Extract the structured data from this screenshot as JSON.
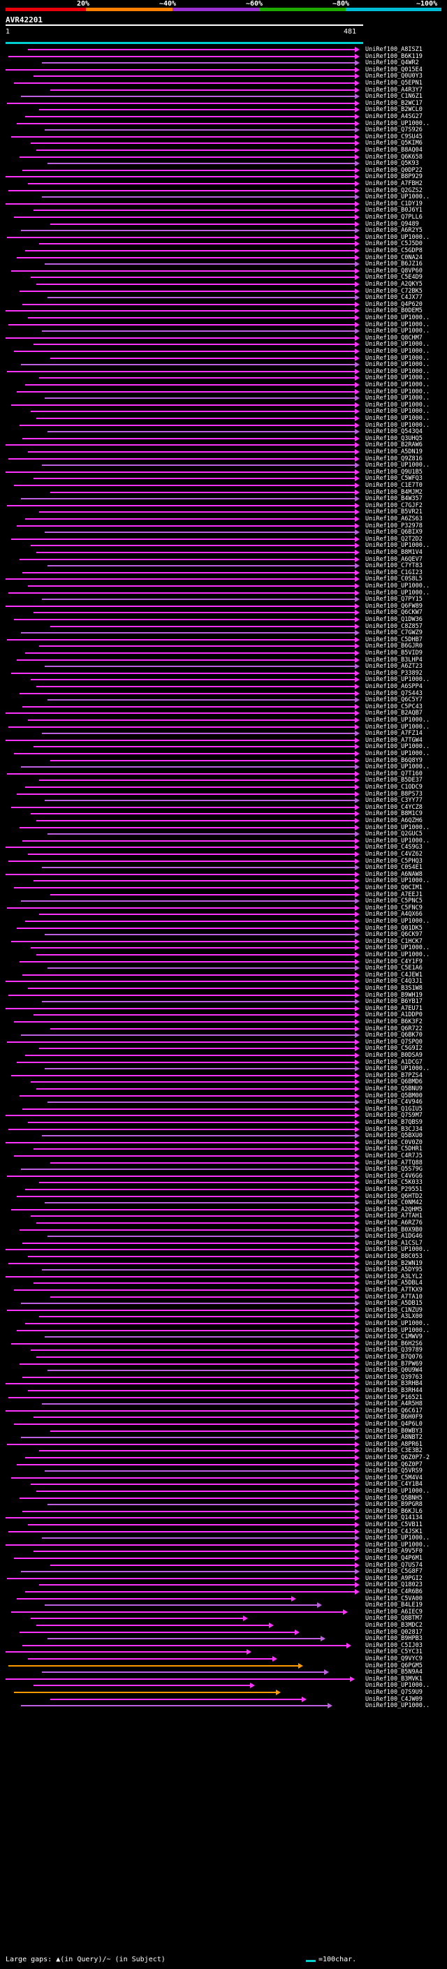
{
  "colors": {
    "background": "#000000",
    "scale_segments": [
      "#e8000b",
      "#ff8000",
      "#9b30d0",
      "#1eaa00",
      "#00bcd4"
    ],
    "query_line": "#00cfcf",
    "hit_magenta": "#ff33ff",
    "hit_purple": "#c060e0",
    "hit_orange": "#ff9900"
  },
  "scale": {
    "labels": [
      "20%",
      "~40%",
      "~60%",
      "~80%",
      "~100%"
    ]
  },
  "query": {
    "name": "AVR42201",
    "start": "1",
    "end": "481"
  },
  "hits": [
    "UniRef100_A8ISZ1",
    "UniRef100_B6K119",
    "UniRef100_Q4WR2",
    "UniRef100_Q015E4",
    "UniRef100_Q0U0Y3",
    "UniRef100_Q5EPN1",
    "UniRef100_A4R3Y7",
    "UniRef100_C1N6Z1",
    "UniRef100_B2WC17",
    "UniRef100_B2WCL0",
    "UniRef100_A4SG27",
    "UniRef100_UP1000..",
    "UniRef100_Q7S926",
    "UniRef100_C9SU45",
    "UniRef100_Q5KIM6",
    "UniRef100_B8AQ04",
    "UniRef100_Q6K658",
    "UniRef100_Q5K93",
    "UniRef100_Q0DP22",
    "UniRef100_B8P929",
    "UniRef100_A7FBH2",
    "UniRef100_Q2GZS2",
    "UniRef100_UP1000..",
    "UniRef100_C1DY19",
    "UniRef100_B0J6Y1",
    "UniRef100_Q7PLL6",
    "UniRef100_Q9489",
    "UniRef100_A6R2Y5",
    "UniRef100_UP1000..",
    "UniRef100_C5J5D0",
    "UniRef100_C5GDP8",
    "UniRef100_C0NA24",
    "UniRef100_B6JZ16",
    "UniRef100_Q8VP60",
    "UniRef100_C5E4D9",
    "UniRef100_A2QKY5",
    "UniRef100_C72BK5",
    "UniRef100_C4JX77",
    "UniRef100_Q4P620",
    "UniRef100_B0DEM5",
    "UniRef100_UP1000..",
    "UniRef100_UP1000..",
    "UniRef100_UP1000..",
    "UniRef100_Q8CHM7",
    "UniRef100_UP1000..",
    "UniRef100_UP1000..",
    "UniRef100_UP1000..",
    "UniRef100_UP1000..",
    "UniRef100_UP1000..",
    "UniRef100_UP1000..",
    "UniRef100_UP1000..",
    "UniRef100_UP1000..",
    "UniRef100_UP1000..",
    "UniRef100_UP1000..",
    "UniRef100_UP1000..",
    "UniRef100_UP1000..",
    "UniRef100_UP1000..",
    "UniRef100_Q543Q4",
    "UniRef100_Q3UHQ5",
    "UniRef100_B2RAW6",
    "UniRef100_A5DN19",
    "UniRef100_Q9Z816",
    "UniRef100_UP1000..",
    "UniRef100_Q9U1B5",
    "UniRef100_C5WFQ3",
    "UniRef100_C1E7T0",
    "UniRef100_B4MJM2",
    "UniRef100_B4W357",
    "UniRef100_C7GJF2",
    "UniRef100_B5VR21",
    "UniRef100_A6ZS63",
    "UniRef100_P32978",
    "UniRef100_Q6BIX9",
    "UniRef100_Q2T2D2",
    "UniRef100_UP1000..",
    "UniRef100_B8M1V4",
    "UniRef100_A6QEV7",
    "UniRef100_C7YT83",
    "UniRef100_C1GI23",
    "UniRef100_C0S8L5",
    "UniRef100_UP1000..",
    "UniRef100_UP1000..",
    "UniRef100_Q7PY15",
    "UniRef100_Q6FW89",
    "UniRef100_Q6CKW7",
    "UniRef100_Q1DW36",
    "UniRef100_C8Z857",
    "UniRef100_C7GWZ9",
    "UniRef100_C5DHB7",
    "UniRef100_B6GJR0",
    "UniRef100_B5VID9",
    "UniRef100_B3LHP4",
    "UniRef100_A6ZT23",
    "UniRef100_P33892",
    "UniRef100_UP1000..",
    "UniRef100_A6SPP4",
    "UniRef100_Q7S443",
    "UniRef100_Q6C5Y7",
    "UniRef100_C5PC43",
    "UniRef100_B2AQB7",
    "UniRef100_UP1000..",
    "UniRef100_UP1000..",
    "UniRef100_A7FZ14",
    "UniRef100_A7TGW4",
    "UniRef100_UP1000..",
    "UniRef100_UP1000..",
    "UniRef100_B6Q8Y9",
    "UniRef100_UP1000..",
    "UniRef100_Q7T160",
    "UniRef100_B5DE37",
    "UniRef100_C1ODC9",
    "UniRef100_B8PS73",
    "UniRef100_C3YY77",
    "UniRef100_C4YCZ8",
    "UniRef100_B8M1C9",
    "UniRef100_A6QZH6",
    "UniRef100_UP1000..",
    "UniRef100_Q2GUC5",
    "UniRef100_UP1000..",
    "UniRef100_C4S9G3",
    "UniRef100_C4VZ62",
    "UniRef100_C5PHQ3",
    "UniRef100_C0S4E1",
    "UniRef100_A6NAW8",
    "UniRef100_UP1000..",
    "UniRef100_Q0CIM1",
    "UniRef100_A7EEJ1",
    "UniRef100_C5PNC5",
    "UniRef100_C5FNC9",
    "UniRef100_A4QX66",
    "UniRef100_UP1000..",
    "UniRef100_Q01DK5",
    "UniRef100_Q6CK97",
    "UniRef100_C1HCK7",
    "UniRef100_UP1000..",
    "UniRef100_UP1000..",
    "UniRef100_C4Y1F9",
    "UniRef100_C5E1A6",
    "UniRef100_C4JEW1",
    "UniRef100_C4Q3J1",
    "UniRef100_B3S1W8",
    "UniRef100_B9WH19",
    "UniRef100_B6YB17",
    "UniRef100_A7EU71",
    "UniRef100_A1DDP0",
    "UniRef100_B6K3F2",
    "UniRef100_Q6R722",
    "UniRef100_Q6BK70",
    "UniRef100_Q7SPQ0",
    "UniRef100_C5G9I2",
    "UniRef100_B0DSA9",
    "UniRef100_A1DCG7",
    "UniRef100_UP1000..",
    "UniRef100_B7PZS4",
    "UniRef100_Q6BMD6",
    "UniRef100_Q5BNU9",
    "UniRef100_Q5BM00",
    "UniRef100_C4V946",
    "UniRef100_Q1GIU5",
    "UniRef100_Q7S9M7",
    "UniRef100_B7QBS9",
    "UniRef100_B3CJ34",
    "UniRef100_Q5BXU0",
    "UniRef100_C0V0Z0",
    "UniRef100_C5DHR1",
    "UniRef100_C4R7J5",
    "UniRef100_A7TQ88",
    "UniRef100_Q5S79G",
    "UniRef100_C4V6G6",
    "UniRef100_C5K033",
    "UniRef100_P29551",
    "UniRef100_Q6HTD2",
    "UniRef100_C0NM42",
    "UniRef100_A2QHM5",
    "UniRef100_A7TAH1",
    "UniRef100_A6RZ76",
    "UniRef100_B0X9B0",
    "UniRef100_A1DG46",
    "UniRef100_A1CSL7",
    "UniRef100_UP1000..",
    "UniRef100_B8C053",
    "UniRef100_B2WN19",
    "UniRef100_A5DY95",
    "UniRef100_A3LYL2",
    "UniRef100_A5DBL4",
    "UniRef100_A7TKX9",
    "UniRef100_A7TA10",
    "UniRef100_A5DB15",
    "UniRef100_C1NZU9",
    "UniRef100_A3LX00",
    "UniRef100_UP1000..",
    "UniRef100_UP1000..",
    "UniRef100_C1MWV9",
    "UniRef100_B6H2S6",
    "UniRef100_Q39789",
    "UniRef100_B7Q076",
    "UniRef100_B7PW69",
    "UniRef100_Q0U9W4",
    "UniRef100_Q39763",
    "UniRef100_B3RHB4",
    "UniRef100_B3RH44",
    "UniRef100_P16521",
    "UniRef100_A4R5H8",
    "UniRef100_Q6C617",
    "UniRef100_B6H0F9",
    "UniRef100_Q4P6L0",
    "UniRef100_B0WBY3",
    "UniRef100_A8NBT2",
    "UniRef100_A8PR61",
    "UniRef100_C3E3B2",
    "UniRef100_Q6Z0P7-2",
    "UniRef100_Q6Z0P7",
    "UniRef100_Q5VRS9",
    "UniRef100_C5M4V4",
    "UniRef100_C4Y1B4",
    "UniRef100_UP1000..",
    "UniRef100_Q5BNH5",
    "UniRef100_B9PGR8",
    "UniRef100_B6KJL6",
    "UniRef100_Q14134",
    "UniRef100_C5VB11",
    "UniRef100_C4JSK1",
    "UniRef100_UP1000..",
    "UniRef100_UP1000..",
    "UniRef100_A9V5F0",
    "UniRef100_Q4P6M1",
    "UniRef100_Q7US74",
    "UniRef100_C5G8F7",
    "UniRef100_A9PGI2",
    "UniRef100_Q18023",
    "UniRef100_C4R6B6",
    "UniRef100_C5VA00",
    "UniRef100_B4LE19",
    "UniRef100_A6IEC9",
    "UniRef100_Q8BTM7",
    "UniRef100_B3MDC2",
    "UniRef100_Q02817",
    "UniRef100_B9HPB3",
    "UniRef100_C5IJ03",
    "UniRef100_C5YC31",
    "UniRef100_Q9VYC9",
    "UniRef100_Q6PGM5",
    "UniRef100_B5N9A4",
    "UniRef100_B3MVK1",
    "UniRef100_UP1000..",
    "UniRef100_Q7S9U9",
    "UniRef100_C4JW09",
    "UniRef100_UP1000.."
  ],
  "legend": {
    "gaps_text": "Large gaps: ▲(in Query)/~ (in Subject)",
    "scale_text": "=100char."
  }
}
